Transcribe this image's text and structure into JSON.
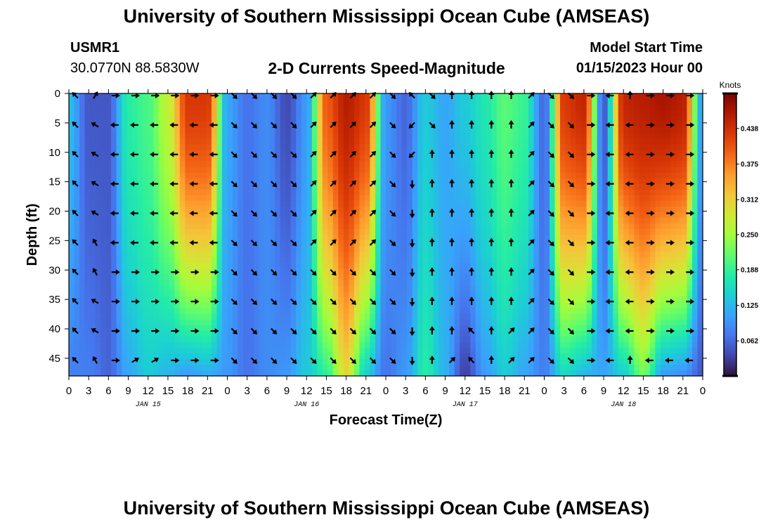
{
  "header": {
    "title": "University of Southern Mississippi Ocean Cube (AMSEAS)",
    "station_id": "USMR1",
    "coords": "30.0770N  88.5830W",
    "plot_title": "2-D Currents Speed-Magnitude",
    "model_label": "Model Start Time",
    "model_date": "01/15/2023 Hour 00"
  },
  "footer": {
    "title": "University of Southern Mississippi Ocean Cube (AMSEAS)"
  },
  "colors": {
    "scale": [
      "#30123b",
      "#4145ab",
      "#4675ed",
      "#39a2fc",
      "#1bcfd4",
      "#24eca6",
      "#61fc6c",
      "#a4fc3b",
      "#d1e834",
      "#f3c63a",
      "#fe9b2d",
      "#f36315",
      "#d93806",
      "#b11901",
      "#7a0403"
    ],
    "arrow": "#000000",
    "frame": "#000000"
  },
  "chart_data": {
    "type": "heatmap",
    "title": "2-D Currents Speed-Magnitude",
    "xlabel": "Forecast Time(Z)",
    "ylabel": "Depth (ft)",
    "x_ticks": [
      "0",
      "3",
      "6",
      "9",
      "12",
      "15",
      "18",
      "21",
      "0",
      "3",
      "6",
      "9",
      "12",
      "15",
      "18",
      "21",
      "0",
      "3",
      "6",
      "9",
      "12",
      "15",
      "18",
      "21",
      "0",
      "3",
      "6",
      "9",
      "12",
      "15",
      "18",
      "21",
      "0"
    ],
    "x_range_hours": [
      0,
      96
    ],
    "day_labels": [
      "JAN 15",
      "JAN 16",
      "JAN 17",
      "JAN 18"
    ],
    "y_ticks": [
      "0",
      "5",
      "10",
      "15",
      "20",
      "25",
      "30",
      "35",
      "40",
      "45"
    ],
    "ylim": [
      0,
      48
    ],
    "colorbar": {
      "units": "Knots",
      "range": [
        0,
        0.5
      ],
      "tick_values": [
        0.062,
        0.125,
        0.188,
        0.25,
        0.312,
        0.375,
        0.438
      ],
      "tick_labels": [
        "0.062",
        "0.125",
        "0.188",
        "0.250",
        "0.312",
        "0.375",
        "0.438"
      ]
    },
    "speed_profiles": {
      "description": "Approximate surface and bottom current speed (knots) at each 3-hour step; depth interpolated between them",
      "hours": [
        0,
        3,
        6,
        9,
        12,
        15,
        18,
        21,
        24,
        27,
        30,
        33,
        36,
        39,
        42,
        45,
        48,
        51,
        54,
        57,
        60,
        63,
        66,
        69,
        72,
        75,
        78,
        81,
        84,
        87,
        90,
        93,
        96
      ],
      "surface": [
        0.13,
        0.05,
        0.05,
        0.18,
        0.2,
        0.27,
        0.43,
        0.43,
        0.11,
        0.07,
        0.09,
        0.04,
        0.1,
        0.4,
        0.46,
        0.43,
        0.1,
        0.06,
        0.14,
        0.11,
        0.14,
        0.17,
        0.21,
        0.19,
        0.06,
        0.43,
        0.45,
        0.05,
        0.45,
        0.46,
        0.47,
        0.46,
        0.1
      ],
      "bottom": [
        0.08,
        0.08,
        0.06,
        0.11,
        0.14,
        0.12,
        0.1,
        0.11,
        0.1,
        0.07,
        0.09,
        0.1,
        0.14,
        0.18,
        0.3,
        0.14,
        0.07,
        0.1,
        0.18,
        0.12,
        0.03,
        0.1,
        0.14,
        0.11,
        0.08,
        0.15,
        0.12,
        0.11,
        0.14,
        0.22,
        0.1,
        0.09,
        0.05
      ]
    },
    "vector_depths_ft": [
      0,
      5,
      10,
      15,
      20,
      25,
      30,
      35,
      40,
      45
    ],
    "vector_hours": [
      1,
      4,
      7,
      10,
      13,
      16,
      19,
      22,
      25,
      28,
      31,
      34,
      37,
      40,
      43,
      46,
      49,
      52,
      55,
      58,
      61,
      64,
      67,
      70,
      73,
      76,
      79,
      82,
      85,
      88,
      91,
      94
    ],
    "vector_direction_deg": [
      [
        315,
        315,
        315,
        315,
        315,
        315,
        315,
        315,
        315,
        315
      ],
      [
        30,
        300,
        300,
        300,
        300,
        330,
        330,
        300,
        300,
        330
      ],
      [
        90,
        270,
        270,
        270,
        270,
        270,
        90,
        90,
        90,
        90
      ],
      [
        90,
        270,
        270,
        270,
        270,
        270,
        90,
        90,
        90,
        60
      ],
      [
        90,
        270,
        270,
        270,
        270,
        270,
        90,
        90,
        90,
        60
      ],
      [
        90,
        270,
        270,
        270,
        270,
        270,
        90,
        90,
        90,
        90
      ],
      [
        90,
        270,
        270,
        270,
        270,
        270,
        90,
        90,
        90,
        90
      ],
      [
        90,
        270,
        270,
        270,
        270,
        270,
        90,
        90,
        90,
        90
      ],
      [
        135,
        135,
        135,
        135,
        135,
        135,
        135,
        135,
        135,
        135
      ],
      [
        135,
        135,
        135,
        135,
        135,
        135,
        135,
        135,
        135,
        135
      ],
      [
        135,
        135,
        135,
        135,
        135,
        135,
        135,
        135,
        135,
        135
      ],
      [
        135,
        135,
        135,
        135,
        135,
        135,
        135,
        135,
        135,
        135
      ],
      [
        45,
        45,
        45,
        45,
        45,
        45,
        135,
        135,
        135,
        135
      ],
      [
        45,
        45,
        45,
        45,
        45,
        45,
        135,
        135,
        135,
        135
      ],
      [
        45,
        45,
        45,
        45,
        45,
        45,
        135,
        135,
        135,
        135
      ],
      [
        45,
        45,
        45,
        45,
        45,
        45,
        135,
        135,
        135,
        135
      ],
      [
        135,
        135,
        135,
        135,
        135,
        135,
        135,
        135,
        135,
        135
      ],
      [
        315,
        225,
        225,
        180,
        180,
        180,
        180,
        180,
        180,
        180
      ],
      [
        135,
        135,
        0,
        0,
        0,
        0,
        0,
        0,
        0,
        0
      ],
      [
        0,
        0,
        0,
        0,
        0,
        0,
        0,
        0,
        0,
        45
      ],
      [
        0,
        0,
        0,
        0,
        0,
        0,
        0,
        0,
        315,
        315
      ],
      [
        0,
        0,
        0,
        0,
        0,
        0,
        0,
        0,
        0,
        0
      ],
      [
        0,
        0,
        0,
        0,
        0,
        0,
        0,
        0,
        45,
        45
      ],
      [
        45,
        45,
        45,
        45,
        45,
        45,
        45,
        45,
        45,
        45
      ],
      [
        135,
        135,
        135,
        135,
        135,
        135,
        135,
        135,
        135,
        135
      ],
      [
        135,
        135,
        135,
        135,
        135,
        135,
        135,
        135,
        135,
        135
      ],
      [
        90,
        90,
        90,
        90,
        90,
        90,
        90,
        90,
        90,
        90
      ],
      [
        270,
        270,
        270,
        270,
        270,
        270,
        270,
        270,
        270,
        270
      ],
      [
        0,
        270,
        270,
        270,
        270,
        270,
        270,
        270,
        270,
        0
      ],
      [
        90,
        90,
        90,
        90,
        90,
        90,
        90,
        90,
        90,
        270
      ],
      [
        90,
        90,
        90,
        90,
        90,
        90,
        90,
        90,
        90,
        270
      ],
      [
        90,
        90,
        90,
        90,
        90,
        90,
        90,
        90,
        90,
        270
      ]
    ]
  }
}
